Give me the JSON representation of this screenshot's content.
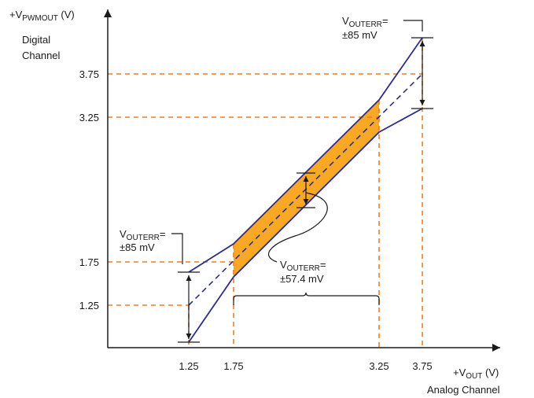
{
  "axes": {
    "y_label_main": "+V",
    "y_label_sub": "PWMOUT",
    "y_label_unit": " (V)",
    "y_caption_line1": "Digital",
    "y_caption_line2": "Channel",
    "x_label_main": "+V",
    "x_label_sub": "OUT",
    "x_label_unit": " (V)",
    "x_caption": "Analog Channel",
    "x_ticks": [
      "1.25",
      "1.75",
      "3.25",
      "3.75"
    ],
    "y_ticks": [
      "3.75",
      "3.25",
      "1.75",
      "1.25"
    ]
  },
  "annotations": {
    "left": {
      "main": "V",
      "sub": "OUTERR",
      "eq": "=",
      "value": "±85 mV"
    },
    "right": {
      "main": "V",
      "sub": "OUTERR",
      "eq": "=",
      "value": "±85 mV"
    },
    "middle": {
      "main": "V",
      "sub": "OUTERR",
      "eq": "=",
      "value": "±57.4 mV"
    }
  },
  "colors": {
    "band_fill": "#f9a825",
    "limit_line": "#2b2e8a",
    "guide_line": "#f07c22",
    "axis": "#1a1a1a"
  }
}
